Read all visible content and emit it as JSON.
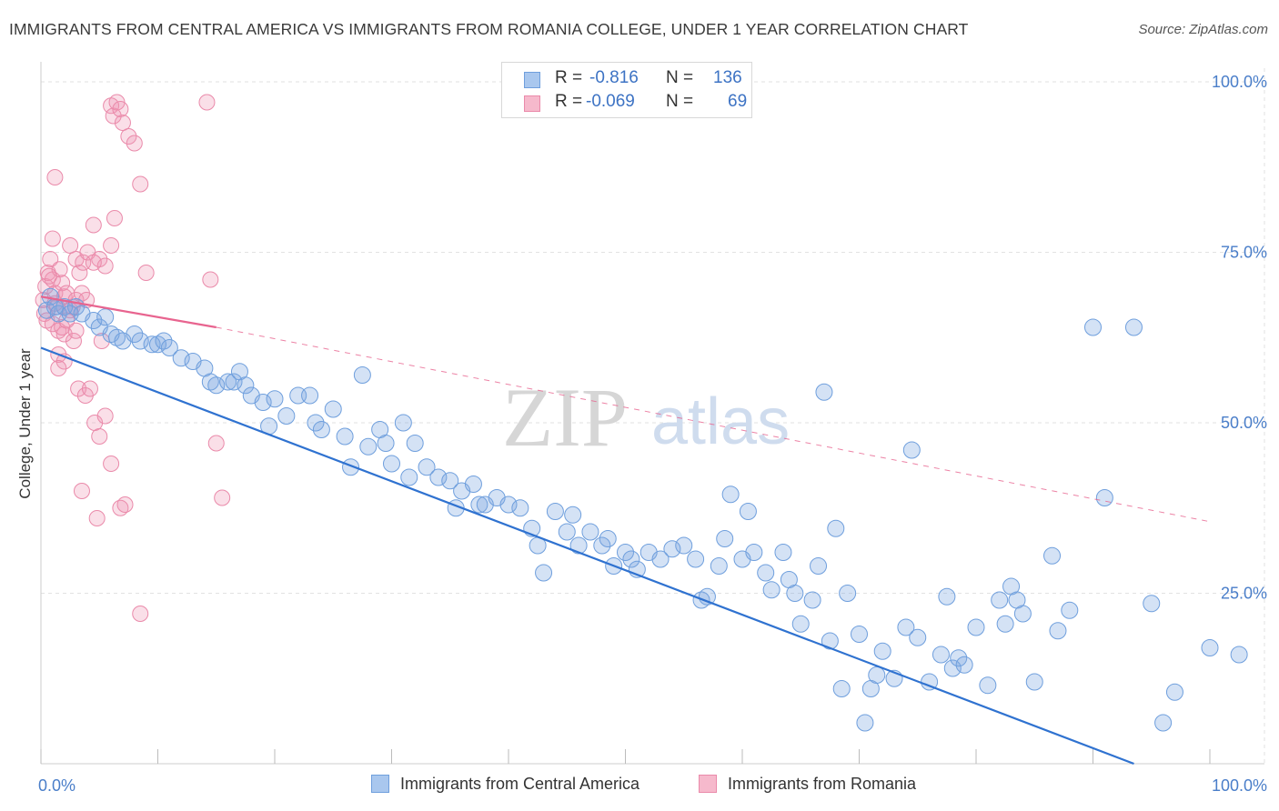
{
  "header": {
    "title": "IMMIGRANTS FROM CENTRAL AMERICA VS IMMIGRANTS FROM ROMANIA COLLEGE, UNDER 1 YEAR CORRELATION CHART",
    "source": "Source: ZipAtlas.com"
  },
  "watermark": {
    "zip": "ZIP",
    "atlas": "atlas"
  },
  "legend": {
    "r_label": "R =",
    "n_label": "N =",
    "rows": [
      {
        "r": "-0.816",
        "n": "136",
        "fill": "#a9c7ee",
        "stroke": "#6f9fdd"
      },
      {
        "r": "-0.069",
        "n": "69",
        "fill": "#f6b9cc",
        "stroke": "#ea8aaa"
      }
    ]
  },
  "bottom_legend": {
    "central_america": "Immigrants from Central America",
    "romania": "Immigrants from Romania"
  },
  "colors": {
    "blue_fill": "rgba(120,165,225,0.32)",
    "blue_stroke": "#6f9fdd",
    "blue_line": "#2f72d0",
    "pink_fill": "rgba(240,150,180,0.30)",
    "pink_stroke": "#ea8aaa",
    "pink_line": "#e8648f",
    "grid": "#e2e2e2",
    "tick_text": "#4a7ec9"
  },
  "chart_data": {
    "type": "scatter",
    "title": "IMMIGRANTS FROM CENTRAL AMERICA VS IMMIGRANTS FROM ROMANIA COLLEGE, UNDER 1 YEAR CORRELATION CHART",
    "xlabel": "",
    "ylabel": "College, Under 1 year",
    "xlim": [
      0,
      100
    ],
    "ylim": [
      0,
      102
    ],
    "x_tick_labels": [
      {
        "value": 0,
        "label": "0.0%"
      },
      {
        "value": 100,
        "label": "100.0%"
      }
    ],
    "y_tick_labels": [
      {
        "value": 25,
        "label": "25.0%"
      },
      {
        "value": 50,
        "label": "50.0%"
      },
      {
        "value": 75,
        "label": "75.0%"
      },
      {
        "value": 100,
        "label": "100.0%"
      }
    ],
    "grid": true,
    "legend_position": "top-center",
    "series": [
      {
        "name": "Immigrants from Central America",
        "r": -0.816,
        "n": 136,
        "trend": {
          "x0": 0,
          "y0": 61,
          "x1": 93.5,
          "y1": 0
        },
        "points": [
          [
            0.5,
            66.5
          ],
          [
            0.8,
            68.5
          ],
          [
            1.2,
            67
          ],
          [
            1.5,
            66
          ],
          [
            2,
            67
          ],
          [
            2.5,
            66
          ],
          [
            3,
            67
          ],
          [
            3.5,
            66
          ],
          [
            4.5,
            65
          ],
          [
            5,
            64
          ],
          [
            5.5,
            65.5
          ],
          [
            6,
            63
          ],
          [
            6.5,
            62.5
          ],
          [
            7,
            62
          ],
          [
            8,
            63
          ],
          [
            8.5,
            62
          ],
          [
            9.5,
            61.5
          ],
          [
            10,
            61.5
          ],
          [
            10.5,
            62
          ],
          [
            11,
            61
          ],
          [
            12,
            59.5
          ],
          [
            13,
            59
          ],
          [
            14,
            58
          ],
          [
            14.5,
            56
          ],
          [
            15,
            55.5
          ],
          [
            16,
            56
          ],
          [
            16.5,
            56
          ],
          [
            17,
            57.5
          ],
          [
            17.5,
            55.5
          ],
          [
            18,
            54
          ],
          [
            19,
            53
          ],
          [
            19.5,
            49.5
          ],
          [
            20,
            53.5
          ],
          [
            21,
            51
          ],
          [
            22,
            54
          ],
          [
            23,
            54
          ],
          [
            23.5,
            50
          ],
          [
            24,
            49
          ],
          [
            25,
            52
          ],
          [
            26,
            48
          ],
          [
            26.5,
            43.5
          ],
          [
            27.5,
            57
          ],
          [
            28,
            46.5
          ],
          [
            29,
            49
          ],
          [
            29.5,
            47
          ],
          [
            30,
            44
          ],
          [
            31,
            50
          ],
          [
            31.5,
            42
          ],
          [
            32,
            47
          ],
          [
            33,
            43.5
          ],
          [
            34,
            42
          ],
          [
            35,
            41.5
          ],
          [
            35.5,
            37.5
          ],
          [
            36,
            40
          ],
          [
            37,
            41
          ],
          [
            37.5,
            38
          ],
          [
            38,
            38
          ],
          [
            39,
            39
          ],
          [
            40,
            38
          ],
          [
            41,
            37.5
          ],
          [
            42,
            34.5
          ],
          [
            42.5,
            32
          ],
          [
            43,
            28
          ],
          [
            44,
            37
          ],
          [
            45,
            34
          ],
          [
            45.5,
            36.5
          ],
          [
            46,
            32
          ],
          [
            47,
            34
          ],
          [
            48,
            32
          ],
          [
            48.5,
            33
          ],
          [
            49,
            29
          ],
          [
            50,
            31
          ],
          [
            50.5,
            30
          ],
          [
            51,
            28.5
          ],
          [
            52,
            31
          ],
          [
            53,
            30
          ],
          [
            54,
            31.5
          ],
          [
            55,
            32
          ],
          [
            56,
            30
          ],
          [
            56.5,
            24
          ],
          [
            57,
            24.5
          ],
          [
            58,
            29
          ],
          [
            58.5,
            33
          ],
          [
            59,
            39.5
          ],
          [
            60,
            30
          ],
          [
            60.5,
            37
          ],
          [
            61,
            31
          ],
          [
            62,
            28
          ],
          [
            62.5,
            25.5
          ],
          [
            63.5,
            31
          ],
          [
            64,
            27
          ],
          [
            64.5,
            25
          ],
          [
            65,
            20.5
          ],
          [
            66,
            24
          ],
          [
            66.5,
            29
          ],
          [
            67,
            54.5
          ],
          [
            67.5,
            18
          ],
          [
            68,
            34.5
          ],
          [
            68.5,
            11
          ],
          [
            69,
            25
          ],
          [
            70,
            19
          ],
          [
            70.5,
            6
          ],
          [
            71,
            11
          ],
          [
            71.5,
            13
          ],
          [
            72,
            16.5
          ],
          [
            73,
            12.5
          ],
          [
            74,
            20
          ],
          [
            74.5,
            46
          ],
          [
            75,
            18.5
          ],
          [
            76,
            12
          ],
          [
            77,
            16
          ],
          [
            77.5,
            24.5
          ],
          [
            78,
            14
          ],
          [
            78.5,
            15.5
          ],
          [
            79,
            14.5
          ],
          [
            80,
            20
          ],
          [
            81,
            11.5
          ],
          [
            82,
            24
          ],
          [
            82.5,
            20.5
          ],
          [
            83,
            26
          ],
          [
            83.5,
            24
          ],
          [
            84,
            22
          ],
          [
            85,
            12
          ],
          [
            86.5,
            30.5
          ],
          [
            87,
            19.5
          ],
          [
            88,
            22.5
          ],
          [
            90,
            64
          ],
          [
            91,
            39
          ],
          [
            93.5,
            64
          ],
          [
            95,
            23.5
          ],
          [
            96,
            6
          ],
          [
            97,
            10.5
          ],
          [
            100,
            17
          ],
          [
            102.5,
            16
          ]
        ]
      },
      {
        "name": "Immigrants from Romania",
        "r": -0.069,
        "n": 69,
        "trend": {
          "x0": 0,
          "y0": 68.5,
          "x1": 15,
          "y1": 64,
          "dashed_to": {
            "x1": 100,
            "y1": 35.5
          }
        },
        "points": [
          [
            0.2,
            68
          ],
          [
            0.4,
            70
          ],
          [
            0.6,
            72
          ],
          [
            0.8,
            74
          ],
          [
            1,
            71
          ],
          [
            1.2,
            69
          ],
          [
            1.4,
            67
          ],
          [
            1.6,
            72.5
          ],
          [
            1.8,
            70.5
          ],
          [
            2,
            68.5
          ],
          [
            2.2,
            69
          ],
          [
            0.3,
            66
          ],
          [
            0.5,
            65
          ],
          [
            1,
            64.5
          ],
          [
            1.5,
            63.5
          ],
          [
            2,
            63
          ],
          [
            2.5,
            66.5
          ],
          [
            3,
            68
          ],
          [
            3.5,
            69
          ],
          [
            1,
            77
          ],
          [
            1.5,
            60
          ],
          [
            2,
            59
          ],
          [
            2.5,
            76
          ],
          [
            3,
            74
          ],
          [
            3.3,
            72
          ],
          [
            3.6,
            73.5
          ],
          [
            4,
            75
          ],
          [
            4.5,
            79
          ],
          [
            5,
            74
          ],
          [
            5.5,
            73
          ],
          [
            6,
            96.5
          ],
          [
            6.2,
            95
          ],
          [
            6.5,
            97
          ],
          [
            6.8,
            96
          ],
          [
            7,
            94
          ],
          [
            7.5,
            92
          ],
          [
            8,
            91
          ],
          [
            8.5,
            85
          ],
          [
            1.2,
            86
          ],
          [
            4.5,
            73.5
          ],
          [
            6,
            76
          ],
          [
            6.3,
            80
          ],
          [
            1.8,
            64
          ],
          [
            2.8,
            62
          ],
          [
            3.2,
            55
          ],
          [
            3.8,
            54
          ],
          [
            4.2,
            55
          ],
          [
            4.6,
            50
          ],
          [
            5,
            48
          ],
          [
            5.5,
            51
          ],
          [
            6,
            44
          ],
          [
            6.8,
            37.5
          ],
          [
            7.2,
            38
          ],
          [
            1.5,
            58
          ],
          [
            2.2,
            65
          ],
          [
            3,
            63.5
          ],
          [
            9,
            72
          ],
          [
            14.5,
            71
          ],
          [
            15,
            47
          ],
          [
            15.5,
            39
          ],
          [
            14.2,
            97
          ],
          [
            8.5,
            22
          ],
          [
            3.5,
            40
          ],
          [
            4.8,
            36
          ],
          [
            1.2,
            67.5
          ],
          [
            2.7,
            67
          ],
          [
            3.9,
            68
          ],
          [
            0.7,
            71.5
          ],
          [
            5.2,
            62
          ]
        ]
      }
    ]
  }
}
